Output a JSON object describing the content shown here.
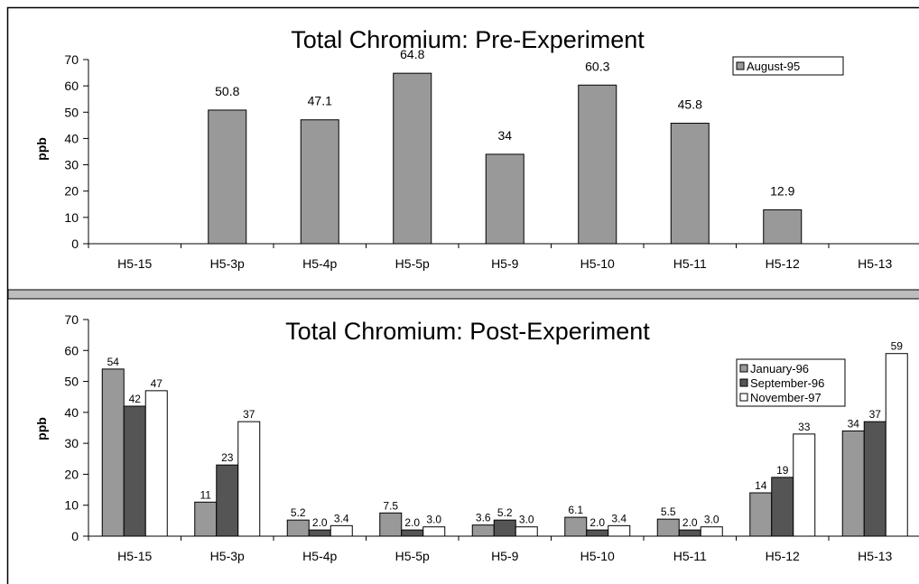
{
  "chart_data": [
    {
      "type": "bar",
      "title": "Total Chromium: Pre-Experiment",
      "xlabel": "",
      "ylabel": "ppb",
      "ylim": [
        0,
        70
      ],
      "yticks": [
        0,
        10,
        20,
        30,
        40,
        50,
        60,
        70
      ],
      "categories": [
        "H5-15",
        "H5-3p",
        "H5-4p",
        "H5-5p",
        "H5-9",
        "H5-10",
        "H5-11",
        "H5-12",
        "H5-13"
      ],
      "series": [
        {
          "name": "August-95",
          "color": "#999999",
          "values": [
            null,
            50.8,
            47.1,
            64.8,
            34,
            60.3,
            45.8,
            12.9,
            null
          ],
          "labels": [
            "",
            "50.8",
            "47.1",
            "64.8",
            "34",
            "60.3",
            "45.8",
            "12.9",
            ""
          ]
        }
      ],
      "legend": "top-right",
      "grid": false
    },
    {
      "type": "bar",
      "title": "Total Chromium: Post-Experiment",
      "xlabel": "",
      "ylabel": "ppb",
      "ylim": [
        0,
        70
      ],
      "yticks": [
        0,
        10,
        20,
        30,
        40,
        50,
        60,
        70
      ],
      "categories": [
        "H5-15",
        "H5-3p",
        "H5-4p",
        "H5-5p",
        "H5-9",
        "H5-10",
        "H5-11",
        "H5-12",
        "H5-13"
      ],
      "series": [
        {
          "name": "January-96",
          "color": "#999999",
          "values": [
            54,
            11,
            5.2,
            7.5,
            3.6,
            6.1,
            5.5,
            14,
            34
          ],
          "labels": [
            "54",
            "11",
            "5.2",
            "7.5",
            "3.6",
            "6.1",
            "5.5",
            "14",
            "34"
          ]
        },
        {
          "name": "September-96",
          "color": "#555555",
          "values": [
            42,
            23,
            2.0,
            2.0,
            5.2,
            2.0,
            2.0,
            19,
            37
          ],
          "labels": [
            "42",
            "23",
            "2.0",
            "2.0",
            "5.2",
            "2.0",
            "2.0",
            "19",
            "37"
          ]
        },
        {
          "name": "November-97",
          "color": "#ffffff",
          "values": [
            47,
            37,
            3.4,
            3.0,
            3.0,
            3.4,
            3.0,
            33,
            59
          ],
          "labels": [
            "47",
            "37",
            "3.4",
            "3.0",
            "3.0",
            "3.4",
            "3.0",
            "33",
            "59"
          ]
        }
      ],
      "legend": "top-right",
      "grid": false
    }
  ]
}
